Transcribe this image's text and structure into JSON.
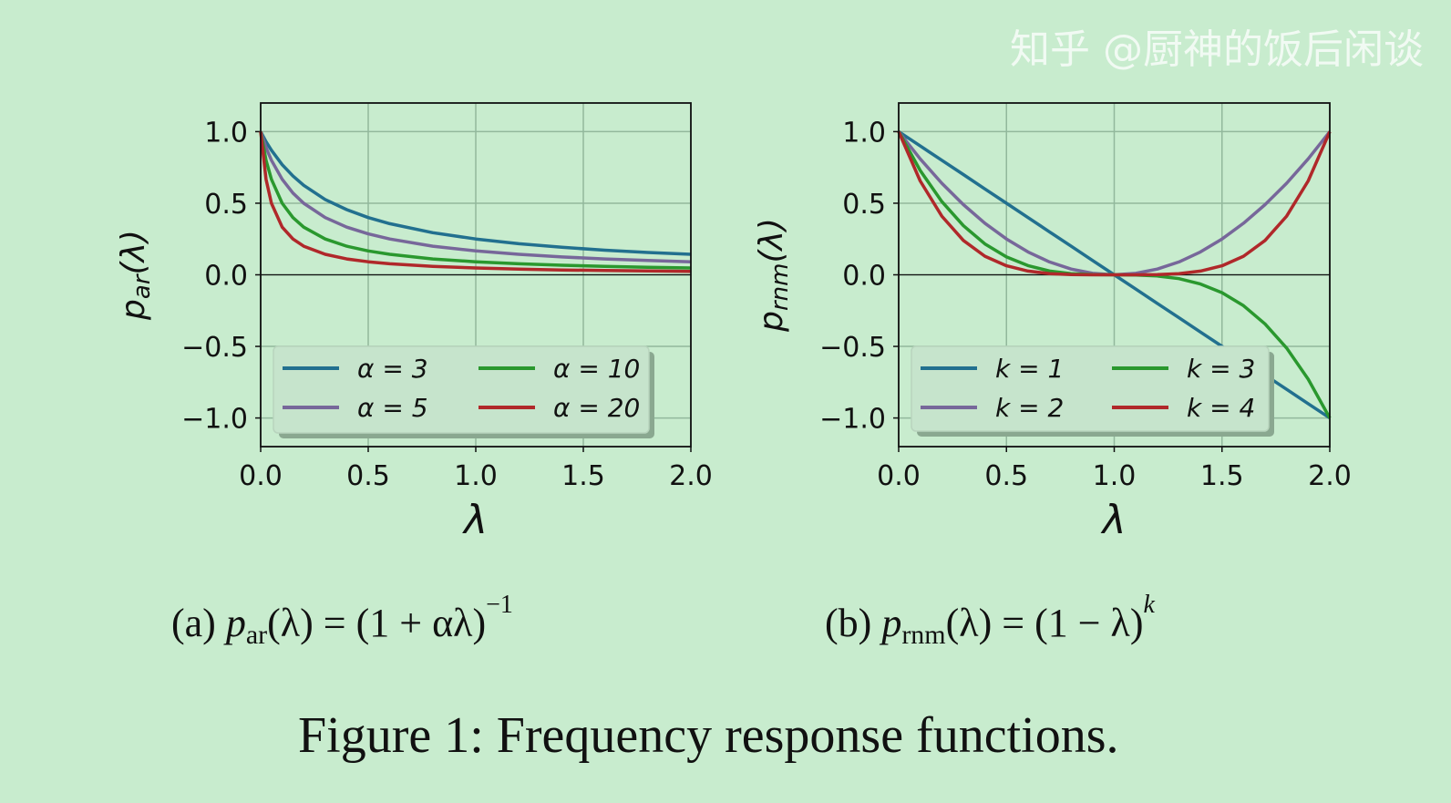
{
  "chart_data": [
    {
      "type": "line",
      "ylabel": {
        "base": "p",
        "sub": "ar",
        "rest": "(λ)"
      },
      "xlabel": "λ",
      "xlim": [
        0,
        2
      ],
      "ylim": [
        -1.2,
        1.2
      ],
      "xticks": [
        "0.0",
        "0.5",
        "1.0",
        "1.5",
        "2.0"
      ],
      "yticks": [
        "1.0",
        "0.5",
        "0.0",
        "−0.5",
        "−1.0"
      ],
      "grid": true,
      "legend_position": "lower-left",
      "x": [
        0,
        0.025,
        0.05,
        0.1,
        0.15,
        0.2,
        0.3,
        0.4,
        0.5,
        0.6,
        0.8,
        1.0,
        1.2,
        1.4,
        1.6,
        1.8,
        2.0
      ],
      "series": [
        {
          "name": "α = 3",
          "color": "#22708f",
          "values": [
            1,
            0.93,
            0.87,
            0.769,
            0.69,
            0.625,
            0.526,
            0.455,
            0.4,
            0.357,
            0.294,
            0.25,
            0.217,
            0.192,
            0.172,
            0.156,
            0.143
          ]
        },
        {
          "name": "α = 5",
          "color": "#77679a",
          "values": [
            1,
            0.889,
            0.8,
            0.667,
            0.571,
            0.5,
            0.4,
            0.333,
            0.286,
            0.25,
            0.2,
            0.167,
            0.143,
            0.125,
            0.111,
            0.1,
            0.091
          ]
        },
        {
          "name": "α = 10",
          "color": "#2a982e",
          "values": [
            1,
            0.8,
            0.667,
            0.5,
            0.4,
            0.333,
            0.25,
            0.2,
            0.167,
            0.143,
            0.111,
            0.091,
            0.077,
            0.067,
            0.059,
            0.053,
            0.048
          ]
        },
        {
          "name": "α = 20",
          "color": "#b0282a",
          "values": [
            1,
            0.667,
            0.5,
            0.333,
            0.25,
            0.2,
            0.143,
            0.111,
            0.091,
            0.077,
            0.059,
            0.048,
            0.04,
            0.034,
            0.03,
            0.027,
            0.024
          ]
        }
      ]
    },
    {
      "type": "line",
      "ylabel": {
        "base": "p",
        "sub": "rnm",
        "rest": "(λ)"
      },
      "xlabel": "λ",
      "xlim": [
        0,
        2
      ],
      "ylim": [
        -1.2,
        1.2
      ],
      "xticks": [
        "0.0",
        "0.5",
        "1.0",
        "1.5",
        "2.0"
      ],
      "yticks": [
        "1.0",
        "0.5",
        "0.0",
        "−0.5",
        "−1.0"
      ],
      "grid": true,
      "legend_position": "lower-left",
      "x": [
        0,
        0.1,
        0.2,
        0.3,
        0.4,
        0.5,
        0.6,
        0.7,
        0.8,
        0.9,
        1.0,
        1.1,
        1.2,
        1.3,
        1.4,
        1.5,
        1.6,
        1.7,
        1.8,
        1.9,
        2.0
      ],
      "series": [
        {
          "name": "k = 1",
          "color": "#22708f",
          "values": [
            1,
            0.9,
            0.8,
            0.7,
            0.6,
            0.5,
            0.4,
            0.3,
            0.2,
            0.1,
            0,
            -0.1,
            -0.2,
            -0.3,
            -0.4,
            -0.5,
            -0.6,
            -0.7,
            -0.8,
            -0.9,
            -1
          ]
        },
        {
          "name": "k = 2",
          "color": "#77679a",
          "values": [
            1,
            0.81,
            0.64,
            0.49,
            0.36,
            0.25,
            0.16,
            0.09,
            0.04,
            0.01,
            0,
            0.01,
            0.04,
            0.09,
            0.16,
            0.25,
            0.36,
            0.49,
            0.64,
            0.81,
            1
          ]
        },
        {
          "name": "k = 3",
          "color": "#2a982e",
          "values": [
            1,
            0.729,
            0.512,
            0.343,
            0.216,
            0.125,
            0.064,
            0.027,
            0.008,
            0.001,
            0,
            -0.001,
            -0.008,
            -0.027,
            -0.064,
            -0.125,
            -0.216,
            -0.343,
            -0.512,
            -0.729,
            -1
          ]
        },
        {
          "name": "k = 4",
          "color": "#b0282a",
          "values": [
            1,
            0.656,
            0.41,
            0.24,
            0.13,
            0.063,
            0.026,
            0.008,
            0.002,
            0,
            0,
            0,
            0.002,
            0.008,
            0.026,
            0.063,
            0.13,
            0.24,
            0.41,
            0.656,
            1
          ]
        }
      ]
    }
  ],
  "captions": {
    "a": {
      "label": "(a) ",
      "p": "p",
      "sub": "ar",
      "mid": "(λ) = (1 + αλ)",
      "sup": "−1"
    },
    "b": {
      "label": "(b) ",
      "p": "p",
      "sub": "rnm",
      "mid": "(λ) = (1 − λ)",
      "sup": "k"
    }
  },
  "figure_caption": "Figure 1: Frequency response functions.",
  "watermark": "知乎 @厨神的饭后闲谈"
}
